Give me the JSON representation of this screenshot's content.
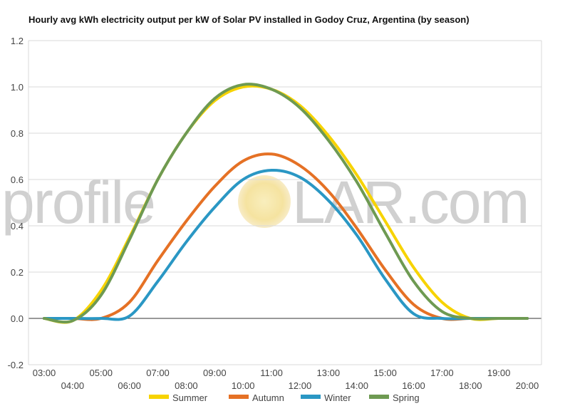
{
  "chart_data": {
    "type": "line",
    "title": "Hourly avg kWh electricity output per kW of Solar PV installed in Godoy Cruz, Argentina (by season)",
    "xlabel": "",
    "ylabel": "",
    "x": [
      "03:00",
      "04:00",
      "05:00",
      "06:00",
      "07:00",
      "08:00",
      "09:00",
      "10:00",
      "11:00",
      "12:00",
      "13:00",
      "14:00",
      "15:00",
      "16:00",
      "17:00",
      "18:00",
      "19:00",
      "20:00"
    ],
    "ylim": [
      -0.2,
      1.2
    ],
    "yticks": [
      -0.2,
      0.0,
      0.2,
      0.4,
      0.6,
      0.8,
      1.0,
      1.2
    ],
    "grid": true,
    "legend_position": "bottom",
    "series": [
      {
        "name": "Summer",
        "color": "#f7d300",
        "values": [
          0.0,
          -0.01,
          0.12,
          0.35,
          0.6,
          0.8,
          0.94,
          1.0,
          0.99,
          0.92,
          0.79,
          0.62,
          0.42,
          0.22,
          0.07,
          0.0,
          0.0,
          0.0
        ]
      },
      {
        "name": "Autumn",
        "color": "#e57125",
        "values": [
          0.0,
          0.0,
          0.0,
          0.07,
          0.25,
          0.42,
          0.57,
          0.68,
          0.71,
          0.66,
          0.55,
          0.39,
          0.21,
          0.06,
          0.0,
          0.0,
          0.0,
          0.0
        ]
      },
      {
        "name": "Winter",
        "color": "#2a97c4",
        "values": [
          0.0,
          0.0,
          0.0,
          0.01,
          0.16,
          0.33,
          0.48,
          0.6,
          0.64,
          0.61,
          0.51,
          0.36,
          0.17,
          0.02,
          0.0,
          0.0,
          0.0,
          0.0
        ]
      },
      {
        "name": "Spring",
        "color": "#6e9a52",
        "values": [
          0.0,
          -0.01,
          0.1,
          0.34,
          0.6,
          0.8,
          0.95,
          1.01,
          0.99,
          0.91,
          0.77,
          0.59,
          0.37,
          0.16,
          0.03,
          0.0,
          0.0,
          0.0
        ]
      }
    ]
  },
  "watermark": {
    "left_text": "profile",
    "right_text": "LAR.com",
    "sun_color": "#f5e7a8"
  }
}
